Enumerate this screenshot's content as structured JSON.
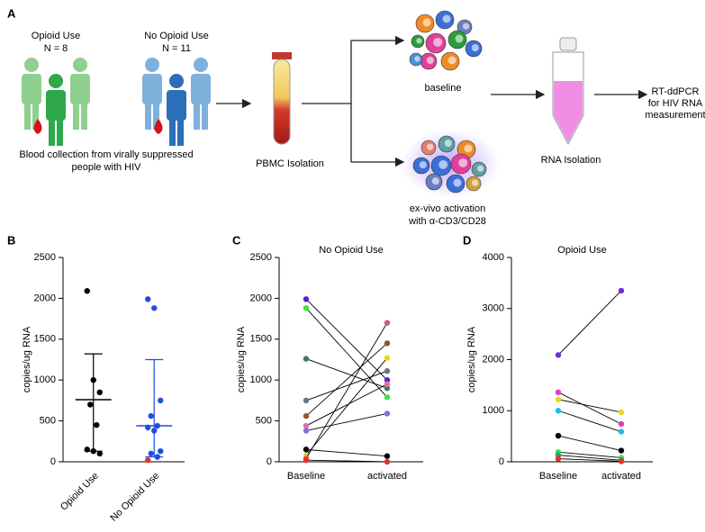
{
  "figure": {
    "panel_a": {
      "label": "A",
      "groups": [
        {
          "title": "Opioid Use",
          "n": "N = 8"
        },
        {
          "title": "No Opioid Use",
          "n": "N = 11"
        }
      ],
      "blood_caption": [
        "Blood collection from virally suppressed",
        "people with HIV"
      ],
      "pbmc": "PBMC Isolation",
      "baseline": "baseline",
      "activation": [
        "ex-vivo activation",
        "with α-CD3/CD28"
      ],
      "rna": "RNA Isolation",
      "measure": [
        "RT-ddPCR",
        "for HIV RNA",
        "measurement"
      ]
    }
  },
  "chart_data": [
    {
      "type": "dot",
      "label": "B",
      "ylabel": "copies/ug RNA",
      "categories": [
        "Opioid Use",
        "No Opioid Use"
      ],
      "values": [
        [
          2090,
          1000,
          850,
          700,
          450,
          150,
          130,
          100
        ],
        [
          1990,
          1880,
          750,
          560,
          440,
          420,
          380,
          130,
          100,
          60,
          20
        ]
      ],
      "point_colors": [
        [
          "#000000",
          "#000000",
          "#000000",
          "#000000",
          "#000000",
          "#000000",
          "#000000",
          "#000000"
        ],
        [
          "#1f4de0",
          "#1f4de0",
          "#1f4de0",
          "#1f4de0",
          "#1f4de0",
          "#1f4de0",
          "#1f4de0",
          "#1f4de0",
          "#1f4de0",
          "#1f4de0",
          "#e8302a"
        ]
      ],
      "colors": [
        "#000000",
        "#1f4de0"
      ],
      "center": [
        760,
        440
      ],
      "low": [
        130,
        60
      ],
      "high": [
        1320,
        1250
      ],
      "ylim": [
        0,
        2500
      ],
      "yticks": [
        0,
        500,
        1000,
        1500,
        2000,
        2500
      ]
    },
    {
      "type": "paired",
      "label": "C",
      "title": "No Opioid Use",
      "ylabel": "copies/ug RNA",
      "categories": [
        "Baseline",
        "activated"
      ],
      "series": [
        {
          "color": "#5a1fd6",
          "values": [
            1990,
            1000
          ]
        },
        {
          "color": "#39e639",
          "values": [
            1880,
            790
          ]
        },
        {
          "color": "#3d7a5c",
          "values": [
            1260,
            900
          ]
        },
        {
          "color": "#6b7388",
          "values": [
            750,
            1110
          ]
        },
        {
          "color": "#8b5a2b",
          "values": [
            560,
            1450
          ]
        },
        {
          "color": "#e0709a",
          "values": [
            440,
            950
          ]
        },
        {
          "color": "#8d6be0",
          "values": [
            380,
            590
          ]
        },
        {
          "color": "#000000",
          "values": [
            150,
            70
          ]
        },
        {
          "color": "#f2d21b",
          "values": [
            80,
            1270
          ]
        },
        {
          "color": "#d9508a",
          "values": [
            40,
            1700
          ]
        },
        {
          "color": "#e8302a",
          "values": [
            20,
            0
          ]
        }
      ],
      "ylim": [
        0,
        2500
      ],
      "yticks": [
        0,
        500,
        1000,
        1500,
        2000,
        2500
      ]
    },
    {
      "type": "paired",
      "label": "D",
      "title": "Opioid Use",
      "ylabel": "copies/ug RNA",
      "categories": [
        "Baseline",
        "activated"
      ],
      "series": [
        {
          "color": "#6a2fd6",
          "values": [
            2090,
            3350
          ]
        },
        {
          "color": "#e040c0",
          "values": [
            1360,
            740
          ]
        },
        {
          "color": "#f2d21b",
          "values": [
            1220,
            970
          ]
        },
        {
          "color": "#1fb8f0",
          "values": [
            1000,
            590
          ]
        },
        {
          "color": "#000000",
          "values": [
            510,
            220
          ]
        },
        {
          "color": "#39e639",
          "values": [
            190,
            80
          ]
        },
        {
          "color": "#2a9d8f",
          "values": [
            130,
            30
          ]
        },
        {
          "color": "#e8302a",
          "values": [
            60,
            10
          ]
        }
      ],
      "ylim": [
        0,
        4000
      ],
      "yticks": [
        0,
        1000,
        2000,
        3000,
        4000
      ]
    }
  ]
}
